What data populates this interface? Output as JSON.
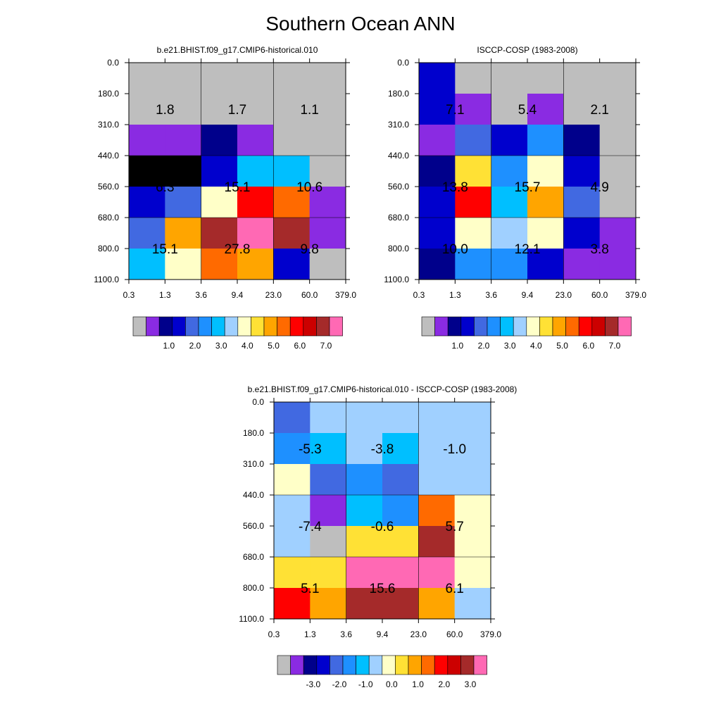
{
  "title": "Southern Ocean ANN",
  "chart_data": [
    {
      "type": "heatmap",
      "title": "b.e21.BHIST.f09_g17.CMIP6-historical.010",
      "x_ticks": [
        "0.3",
        "1.3",
        "3.6",
        "9.4",
        "23.0",
        "60.0",
        "379.0"
      ],
      "y_ticks": [
        "0.0",
        "180.0",
        "310.0",
        "440.0",
        "560.0",
        "680.0",
        "800.0",
        "1100.0"
      ],
      "grid": [
        [
          "g",
          "g",
          "g",
          "g",
          "g",
          "g"
        ],
        [
          "g",
          "g",
          "g",
          "g",
          "g",
          "g"
        ],
        [
          "p",
          "p",
          "n",
          "p",
          "g",
          "g"
        ],
        [
          "N",
          "N",
          "B",
          "s",
          "s",
          "g"
        ],
        [
          "B",
          "r",
          "y",
          "R",
          "O",
          "p"
        ],
        [
          "r",
          "o",
          "br",
          "pk",
          "br",
          "p"
        ],
        [
          "s",
          "y",
          "O",
          "o",
          "B",
          "g"
        ]
      ],
      "annotations": [
        "1.8",
        "1.7",
        "1.1",
        "6.3",
        "15.1",
        "10.6",
        "15.1",
        "27.8",
        "9.8"
      ],
      "colorbar": {
        "colors": [
          "g",
          "p",
          "n",
          "B",
          "r",
          "d",
          "s",
          "l",
          "y",
          "Y",
          "o",
          "O",
          "R",
          "dr",
          "br",
          "pk"
        ],
        "labels": [
          "1.0",
          "2.0",
          "3.0",
          "4.0",
          "5.0",
          "6.0",
          "7.0"
        ]
      }
    },
    {
      "type": "heatmap",
      "title": "ISCCP-COSP (1983-2008)",
      "x_ticks": [
        "0.3",
        "1.3",
        "3.6",
        "9.4",
        "23.0",
        "60.0",
        "379.0"
      ],
      "y_ticks": [
        "0.0",
        "180.0",
        "310.0",
        "440.0",
        "560.0",
        "680.0",
        "800.0",
        "1100.0"
      ],
      "grid": [
        [
          "B",
          "g",
          "g",
          "g",
          "g",
          "g"
        ],
        [
          "B",
          "p",
          "g",
          "p",
          "g",
          "g"
        ],
        [
          "p",
          "r",
          "B",
          "d",
          "n",
          "g"
        ],
        [
          "n",
          "Y",
          "d",
          "y",
          "B",
          "g"
        ],
        [
          "B",
          "R",
          "s",
          "o",
          "r",
          "g"
        ],
        [
          "B",
          "y",
          "l",
          "y",
          "B",
          "p"
        ],
        [
          "n",
          "d",
          "d",
          "B",
          "p",
          "p"
        ]
      ],
      "annotations": [
        "7.1",
        "5.4",
        "2.1",
        "13.8",
        "15.7",
        "4.9",
        "10.0",
        "12.1",
        "3.8"
      ],
      "colorbar": {
        "colors": [
          "g",
          "p",
          "n",
          "B",
          "r",
          "d",
          "s",
          "l",
          "y",
          "Y",
          "o",
          "O",
          "R",
          "dr",
          "br",
          "pk"
        ],
        "labels": [
          "1.0",
          "2.0",
          "3.0",
          "4.0",
          "5.0",
          "6.0",
          "7.0"
        ]
      }
    },
    {
      "type": "heatmap",
      "title": "b.e21.BHIST.f09_g17.CMIP6-historical.010 - ISCCP-COSP (1983-2008)",
      "x_ticks": [
        "0.3",
        "1.3",
        "3.6",
        "9.4",
        "23.0",
        "60.0",
        "379.0"
      ],
      "y_ticks": [
        "0.0",
        "180.0",
        "310.0",
        "440.0",
        "560.0",
        "680.0",
        "800.0",
        "1100.0"
      ],
      "grid": [
        [
          "r",
          "l",
          "l",
          "l",
          "l",
          "l"
        ],
        [
          "d",
          "s",
          "l",
          "s",
          "l",
          "l"
        ],
        [
          "y",
          "r",
          "d",
          "r",
          "l",
          "l"
        ],
        [
          "l",
          "p",
          "s",
          "d",
          "O",
          "y"
        ],
        [
          "l",
          "g",
          "Y",
          "Y",
          "br",
          "y"
        ],
        [
          "Y",
          "Y",
          "pk",
          "pk",
          "pk",
          "y"
        ],
        [
          "R",
          "o",
          "br",
          "br",
          "o",
          "l"
        ]
      ],
      "annotations": [
        "-5.3",
        "-3.8",
        "-1.0",
        "-7.4",
        "-0.6",
        "5.7",
        "5.1",
        "15.6",
        "6.1"
      ],
      "colorbar": {
        "colors": [
          "g",
          "p",
          "n",
          "B",
          "r",
          "d",
          "s",
          "l",
          "y",
          "Y",
          "o",
          "O",
          "R",
          "dr",
          "br",
          "pk"
        ],
        "labels": [
          "-3.0",
          "-2.0",
          "-1.0",
          "0.0",
          "1.0",
          "2.0",
          "3.0"
        ]
      }
    }
  ],
  "palette": {
    "g": "#bebebe",
    "p": "#8a2be2",
    "n": "#00008b",
    "B": "#0000cd",
    "r": "#4169e1",
    "d": "#1e90ff",
    "s": "#00bfff",
    "l": "#a0d0ff",
    "y": "#ffffc8",
    "Y": "#ffe135",
    "o": "#ffa500",
    "O": "#ff6a00",
    "R": "#ff0000",
    "dr": "#cc0000",
    "br": "#a52a2a",
    "pk": "#ff69b4"
  }
}
